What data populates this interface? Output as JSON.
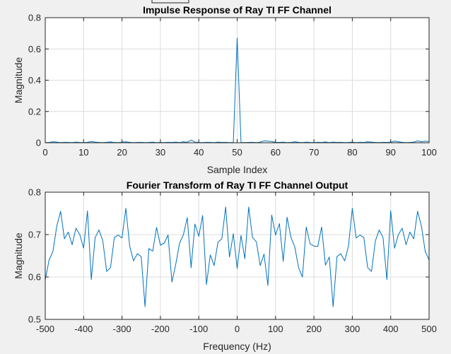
{
  "colors": {
    "series": "#0072bd",
    "grid": "#dcdcdc",
    "axis": "#262626",
    "background": "#f0f0f0"
  },
  "chart_data": [
    {
      "type": "line",
      "title": "Impulse Response of Ray TI FF Channel",
      "xlabel": "Sample Index",
      "ylabel": "Magnitude",
      "xlim": [
        0,
        100
      ],
      "ylim": [
        0,
        0.8
      ],
      "xticks": [
        0,
        10,
        20,
        30,
        40,
        50,
        60,
        70,
        80,
        90,
        100
      ],
      "yticks": [
        0,
        0.2,
        0.4,
        0.6,
        0.8
      ],
      "xticklabels": [
        "0",
        "10",
        "20",
        "30",
        "40",
        "50",
        "60",
        "70",
        "80",
        "90",
        "100"
      ],
      "yticklabels": [
        "0",
        "0.2",
        "0.4",
        "0.6",
        "0.8"
      ],
      "grid": true,
      "series": [
        {
          "x": [
            0,
            1,
            2,
            3,
            4,
            5,
            6,
            7,
            8,
            9,
            10,
            11,
            12,
            13,
            14,
            15,
            16,
            17,
            18,
            19,
            20,
            21,
            22,
            23,
            24,
            25,
            26,
            27,
            28,
            29,
            30,
            31,
            32,
            33,
            34,
            35,
            36,
            37,
            38,
            39,
            40,
            41,
            42,
            43,
            44,
            45,
            46,
            47,
            48,
            49,
            50,
            51,
            52,
            53,
            54,
            55,
            56,
            57,
            58,
            59,
            60,
            61,
            62,
            63,
            64,
            65,
            66,
            67,
            68,
            69,
            70,
            71,
            72,
            73,
            74,
            75,
            76,
            77,
            78,
            79,
            80,
            81,
            82,
            83,
            84,
            85,
            86,
            87,
            88,
            89,
            90,
            91,
            92,
            93,
            94,
            95,
            96,
            97,
            98,
            99,
            100
          ],
          "y": [
            0.001,
            0.002,
            0.006,
            0.004,
            0.001,
            0.003,
            0.002,
            0.001,
            0.004,
            0.002,
            0.001,
            0.003,
            0.008,
            0.004,
            0.002,
            0.001,
            0.003,
            0.005,
            0.002,
            0.001,
            0.004,
            0.006,
            0.003,
            0.001,
            0.002,
            0.003,
            0.001,
            0.002,
            0.004,
            0.001,
            0.002,
            0.001,
            0.003,
            0.002,
            0.004,
            0.001,
            0.006,
            0.003,
            0.017,
            0.004,
            0.002,
            0.001,
            0.003,
            0.002,
            0.001,
            0.004,
            0.002,
            0.003,
            0.001,
            0.002,
            0.67,
            0.002,
            0.001,
            0.002,
            0.003,
            0.001,
            0.004,
            0.012,
            0.01,
            0.008,
            0.003,
            0.002,
            0.004,
            0.001,
            0.002,
            0.006,
            0.003,
            0.001,
            0.004,
            0.002,
            0.001,
            0.003,
            0.002,
            0.005,
            0.001,
            0.004,
            0.002,
            0.003,
            0.001,
            0.002,
            0.004,
            0.001,
            0.003,
            0.002,
            0.006,
            0.004,
            0.002,
            0.001,
            0.003,
            0.002,
            0.004,
            0.01,
            0.006,
            0.003,
            0.001,
            0.002,
            0.004,
            0.012,
            0.006,
            0.01,
            0.008
          ]
        }
      ]
    },
    {
      "type": "line",
      "title": "Fourier Transform of Ray TI FF Channel Output",
      "xlabel": "Frequency (Hz)",
      "ylabel": "Magnitude",
      "xlim": [
        -500,
        500
      ],
      "ylim": [
        0.5,
        0.8
      ],
      "xticks": [
        -500,
        -400,
        -300,
        -200,
        -100,
        0,
        100,
        200,
        300,
        400,
        500
      ],
      "yticks": [
        0.5,
        0.6,
        0.7,
        0.8
      ],
      "xticklabels": [
        "-500",
        "-400",
        "-300",
        "-200",
        "-100",
        "0",
        "100",
        "200",
        "300",
        "400",
        "500"
      ],
      "yticklabels": [
        "0.5",
        "0.6",
        "0.7",
        "0.8"
      ],
      "grid": true,
      "series": [
        {
          "x": [
            -500,
            -490,
            -480,
            -470,
            -460,
            -450,
            -440,
            -430,
            -420,
            -410,
            -400,
            -390,
            -380,
            -370,
            -360,
            -350,
            -340,
            -330,
            -320,
            -310,
            -300,
            -290,
            -280,
            -270,
            -260,
            -250,
            -240,
            -230,
            -220,
            -210,
            -200,
            -190,
            -180,
            -170,
            -160,
            -150,
            -140,
            -130,
            -120,
            -110,
            -100,
            -90,
            -80,
            -70,
            -60,
            -50,
            -40,
            -30,
            -20,
            -10,
            0,
            10,
            20,
            30,
            40,
            50,
            60,
            70,
            80,
            90,
            100,
            110,
            120,
            130,
            140,
            150,
            160,
            170,
            180,
            190,
            200,
            210,
            220,
            230,
            240,
            250,
            260,
            270,
            280,
            290,
            300,
            310,
            320,
            330,
            340,
            350,
            360,
            370,
            380,
            390,
            400,
            410,
            420,
            430,
            440,
            450,
            460,
            470,
            480,
            490,
            500
          ],
          "y": [
            0.593,
            0.64,
            0.66,
            0.72,
            0.755,
            0.69,
            0.706,
            0.676,
            0.715,
            0.7,
            0.668,
            0.756,
            0.594,
            0.693,
            0.711,
            0.685,
            0.613,
            0.622,
            0.693,
            0.699,
            0.692,
            0.762,
            0.673,
            0.638,
            0.655,
            0.648,
            0.53,
            0.667,
            0.661,
            0.717,
            0.675,
            0.68,
            0.699,
            0.588,
            0.63,
            0.68,
            0.7,
            0.74,
            0.622,
            0.725,
            0.696,
            0.745,
            0.582,
            0.652,
            0.627,
            0.682,
            0.69,
            0.765,
            0.647,
            0.702,
            0.62,
            0.698,
            0.643,
            0.765,
            0.693,
            0.683,
            0.627,
            0.654,
            0.58,
            0.746,
            0.699,
            0.726,
            0.637,
            0.741,
            0.694,
            0.671,
            0.622,
            0.6,
            0.718,
            0.678,
            0.673,
            0.672,
            0.718,
            0.628,
            0.647,
            0.53,
            0.648,
            0.655,
            0.638,
            0.673,
            0.762,
            0.692,
            0.699,
            0.693,
            0.622,
            0.613,
            0.685,
            0.711,
            0.693,
            0.594,
            0.756,
            0.668,
            0.7,
            0.715,
            0.676,
            0.706,
            0.69,
            0.755,
            0.72,
            0.66,
            0.64
          ]
        }
      ]
    }
  ]
}
